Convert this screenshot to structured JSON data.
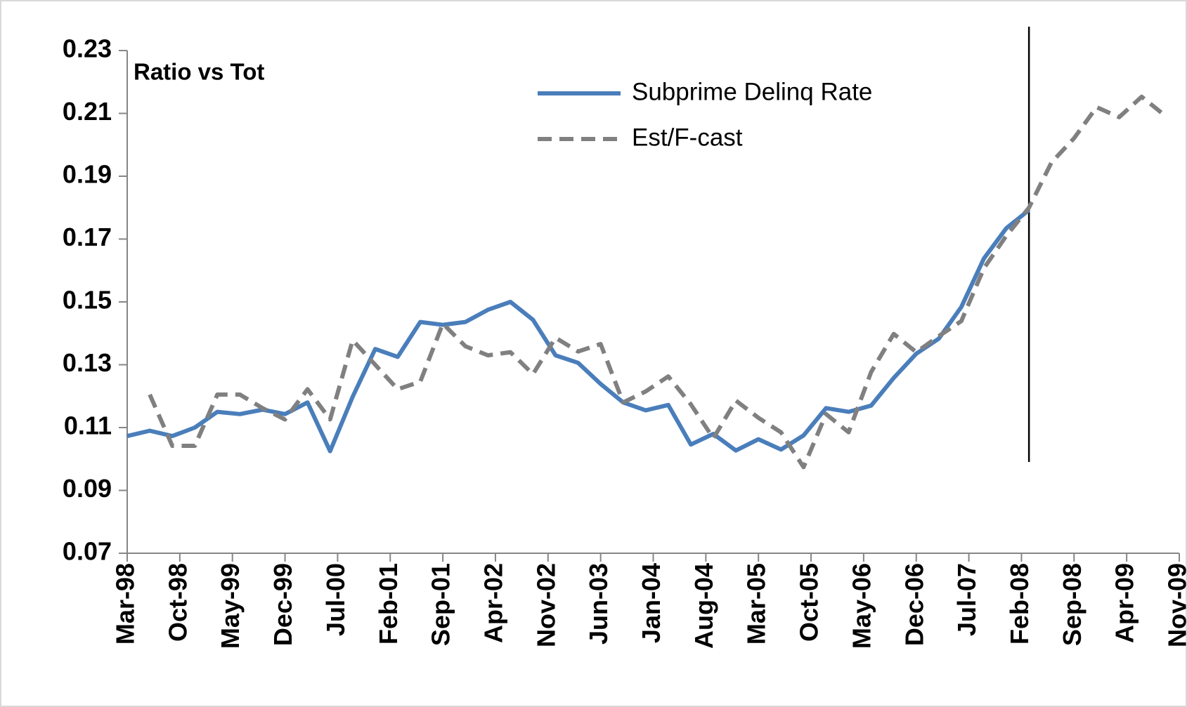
{
  "chart_data": {
    "type": "line",
    "annotation": "Ratio vs Tot",
    "x": [
      "1998-03",
      "1998-06",
      "1998-09",
      "1998-12",
      "1999-03",
      "1999-06",
      "1999-09",
      "1999-12",
      "2000-03",
      "2000-06",
      "2000-09",
      "2000-12",
      "2001-03",
      "2001-06",
      "2001-09",
      "2001-12",
      "2002-03",
      "2002-06",
      "2002-09",
      "2002-12",
      "2003-03",
      "2003-06",
      "2003-09",
      "2003-12",
      "2004-03",
      "2004-06",
      "2004-09",
      "2004-12",
      "2005-03",
      "2005-06",
      "2005-09",
      "2005-12",
      "2006-03",
      "2006-06",
      "2006-09",
      "2006-12",
      "2007-03",
      "2007-06",
      "2007-09",
      "2007-12",
      "2008-03",
      "2008-06",
      "2008-09",
      "2008-12",
      "2009-03",
      "2009-06",
      "2009-09"
    ],
    "series": [
      {
        "name": "Subprime Delinq Rate",
        "color": "#4a7ebb",
        "style": "solid",
        "values": [
          0.1073,
          0.109,
          0.1073,
          0.11,
          0.115,
          0.1143,
          0.1157,
          0.1143,
          0.118,
          0.1025,
          0.1198,
          0.135,
          0.1325,
          0.1436,
          0.1427,
          0.1436,
          0.1475,
          0.15,
          0.1443,
          0.133,
          0.1306,
          0.1239,
          0.118,
          0.1155,
          0.1172,
          0.1046,
          0.108,
          0.1027,
          0.1063,
          0.103,
          0.1075,
          0.1162,
          0.115,
          0.117,
          0.1258,
          0.1335,
          0.1383,
          0.1484,
          0.1638,
          0.1735,
          0.1792,
          null,
          null,
          null,
          null,
          null,
          null
        ]
      },
      {
        "name": "Est/F-cast",
        "color": "#808080",
        "style": "dashed",
        "values": [
          null,
          0.1205,
          0.1042,
          0.1042,
          0.1205,
          0.1205,
          0.1162,
          0.1126,
          0.1222,
          0.1126,
          0.1378,
          0.13,
          0.1222,
          0.1246,
          0.1431,
          0.1359,
          0.133,
          0.134,
          0.127,
          0.1386,
          0.1342,
          0.1366,
          0.118,
          0.1215,
          0.1263,
          0.1174,
          0.1066,
          0.1186,
          0.1131,
          0.1085,
          0.0974,
          0.1143,
          0.1085,
          0.1277,
          0.1398,
          0.134,
          0.1391,
          0.1439,
          0.1607,
          0.1711,
          0.18,
          0.1944,
          0.2021,
          0.212,
          0.2088,
          0.2153,
          0.2095
        ]
      }
    ],
    "xlim": [
      "1998-03",
      "2009-11"
    ],
    "xticks": [
      {
        "value": "1998-03",
        "label": "Mar-98"
      },
      {
        "value": "1998-10",
        "label": "Oct-98"
      },
      {
        "value": "1999-05",
        "label": "May-99"
      },
      {
        "value": "1999-12",
        "label": "Dec-99"
      },
      {
        "value": "2000-07",
        "label": "Jul-00"
      },
      {
        "value": "2001-02",
        "label": "Feb-01"
      },
      {
        "value": "2001-09",
        "label": "Sep-01"
      },
      {
        "value": "2002-04",
        "label": "Apr-02"
      },
      {
        "value": "2002-11",
        "label": "Nov-02"
      },
      {
        "value": "2003-06",
        "label": "Jun-03"
      },
      {
        "value": "2004-01",
        "label": "Jan-04"
      },
      {
        "value": "2004-08",
        "label": "Aug-04"
      },
      {
        "value": "2005-03",
        "label": "Mar-05"
      },
      {
        "value": "2005-10",
        "label": "Oct-05"
      },
      {
        "value": "2006-05",
        "label": "May-06"
      },
      {
        "value": "2006-12",
        "label": "Dec-06"
      },
      {
        "value": "2007-07",
        "label": "Jul-07"
      },
      {
        "value": "2008-02",
        "label": "Feb-08"
      },
      {
        "value": "2008-09",
        "label": "Sep-08"
      },
      {
        "value": "2009-04",
        "label": "Apr-09"
      },
      {
        "value": "2009-11",
        "label": "Nov-09"
      }
    ],
    "ylim": [
      0.07,
      0.23
    ],
    "yticks": [
      0.07,
      0.09,
      0.11,
      0.13,
      0.15,
      0.17,
      0.19,
      0.21,
      0.23
    ],
    "marker_line_x": "2008-03",
    "legend": "top",
    "grid": false
  }
}
